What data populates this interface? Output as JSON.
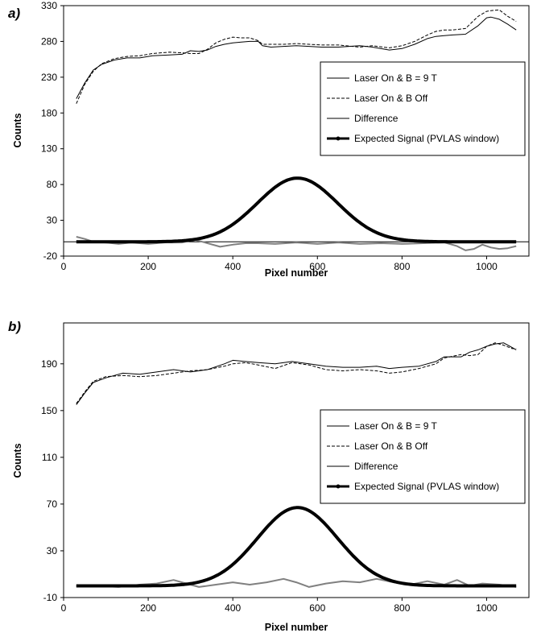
{
  "chart_data": [
    {
      "type": "line",
      "panel_label": "a)",
      "xlabel": "Pixel number",
      "ylabel": "Counts",
      "xlim": [
        0,
        1100
      ],
      "ylim": [
        -20,
        330
      ],
      "xticks": [
        "0",
        "200",
        "400",
        "600",
        "800",
        "1000"
      ],
      "yticks": [
        "-20",
        "30",
        "80",
        "130",
        "180",
        "230",
        "280",
        "330"
      ],
      "zero_line": 0,
      "legend_position": "right",
      "series": [
        {
          "name": "Laser On & B = 9 T",
          "color": "#000000",
          "style": "solid",
          "x": [
            30,
            50,
            70,
            90,
            120,
            150,
            180,
            210,
            250,
            280,
            300,
            320,
            340,
            360,
            380,
            400,
            420,
            440,
            460,
            470,
            490,
            520,
            550,
            580,
            610,
            650,
            700,
            730,
            770,
            800,
            830,
            860,
            880,
            900,
            920,
            950,
            980,
            1000,
            1010,
            1030,
            1050,
            1070
          ],
          "y": [
            200,
            222,
            240,
            248,
            254,
            257,
            257,
            260,
            261,
            262,
            267,
            266,
            268,
            273,
            276,
            278,
            279,
            280,
            280,
            274,
            272,
            273,
            274,
            273,
            272,
            272,
            274,
            272,
            268,
            270,
            276,
            284,
            287,
            288,
            289,
            290,
            302,
            313,
            314,
            311,
            304,
            296
          ]
        },
        {
          "name": "Laser On & B Off",
          "color": "#000000",
          "style": "dashed",
          "x": [
            30,
            50,
            70,
            90,
            120,
            150,
            180,
            210,
            250,
            280,
            300,
            320,
            340,
            360,
            380,
            400,
            420,
            440,
            460,
            470,
            490,
            520,
            550,
            580,
            610,
            650,
            700,
            730,
            770,
            800,
            830,
            860,
            880,
            900,
            920,
            950,
            980,
            1000,
            1010,
            1030,
            1050,
            1070
          ],
          "y": [
            193,
            220,
            238,
            249,
            256,
            259,
            260,
            263,
            265,
            264,
            263,
            263,
            269,
            278,
            283,
            286,
            285,
            285,
            281,
            276,
            276,
            276,
            277,
            276,
            275,
            275,
            272,
            274,
            271,
            274,
            280,
            289,
            294,
            296,
            296,
            298,
            315,
            322,
            323,
            324,
            315,
            308
          ]
        },
        {
          "name": "Difference",
          "color": "#808080",
          "style": "solid",
          "x": [
            30,
            50,
            70,
            100,
            130,
            160,
            200,
            240,
            280,
            310,
            340,
            370,
            400,
            430,
            460,
            500,
            550,
            600,
            650,
            700,
            750,
            800,
            850,
            900,
            930,
            950,
            970,
            990,
            1010,
            1030,
            1050,
            1070
          ],
          "y": [
            7,
            4,
            0,
            -1,
            -3,
            -1,
            -3,
            -1,
            -1,
            3,
            -2,
            -7,
            -4,
            -2,
            -2,
            -3,
            -1,
            -3,
            -1,
            -3,
            -2,
            -3,
            -2,
            -1,
            -6,
            -12,
            -10,
            -4,
            -8,
            -10,
            -9,
            -6
          ]
        },
        {
          "name": "Expected Signal (PVLAS window)",
          "color": "#000000",
          "style": "bold-gaussian",
          "gaussian": {
            "amplitude": 89,
            "center": 553,
            "sigma": 95
          },
          "x_range": [
            30,
            1070
          ]
        }
      ]
    },
    {
      "type": "line",
      "panel_label": "b)",
      "xlabel": "Pixel number",
      "ylabel": "Counts",
      "xlim": [
        0,
        1100
      ],
      "ylim": [
        -10,
        225
      ],
      "xticks": [
        "0",
        "200",
        "400",
        "600",
        "800",
        "1000"
      ],
      "yticks": [
        "-10",
        "30",
        "70",
        "110",
        "150",
        "190"
      ],
      "legend_position": "right",
      "series": [
        {
          "name": "Laser On & B = 9 T",
          "color": "#000000",
          "style": "solid",
          "x": [
            30,
            50,
            70,
            100,
            140,
            180,
            220,
            260,
            300,
            340,
            380,
            400,
            430,
            460,
            500,
            540,
            580,
            620,
            660,
            700,
            740,
            770,
            800,
            840,
            880,
            900,
            940,
            960,
            980,
            1000,
            1020,
            1040,
            1060,
            1070
          ],
          "y": [
            155,
            165,
            174,
            178,
            182,
            181,
            183,
            185,
            183,
            185,
            190,
            193,
            192,
            191,
            190,
            192,
            190,
            188,
            187,
            187,
            188,
            186,
            187,
            188,
            192,
            196,
            196,
            200,
            202,
            205,
            207,
            208,
            204,
            202
          ]
        },
        {
          "name": "Laser On & B Off",
          "color": "#000000",
          "style": "dashed",
          "x": [
            30,
            50,
            70,
            100,
            140,
            180,
            220,
            260,
            300,
            340,
            380,
            400,
            430,
            460,
            500,
            540,
            580,
            620,
            660,
            700,
            740,
            770,
            800,
            840,
            880,
            900,
            940,
            960,
            980,
            1000,
            1020,
            1040,
            1060,
            1070
          ],
          "y": [
            156,
            166,
            175,
            179,
            180,
            179,
            180,
            182,
            184,
            185,
            188,
            190,
            191,
            189,
            186,
            191,
            189,
            185,
            184,
            185,
            184,
            182,
            183,
            186,
            190,
            195,
            198,
            197,
            198,
            205,
            208,
            206,
            203,
            203
          ]
        },
        {
          "name": "Difference",
          "color": "#808080",
          "style": "solid",
          "x": [
            30,
            80,
            130,
            180,
            220,
            260,
            290,
            320,
            360,
            400,
            440,
            480,
            520,
            550,
            580,
            620,
            660,
            700,
            740,
            780,
            820,
            860,
            900,
            930,
            960,
            990,
            1030,
            1070
          ],
          "y": [
            0,
            0,
            -1,
            1,
            2,
            5,
            2,
            -1,
            1,
            3,
            1,
            3,
            6,
            3,
            -1,
            2,
            4,
            3,
            6,
            3,
            1,
            4,
            1,
            5,
            0,
            2,
            1,
            -1
          ]
        },
        {
          "name": "Expected Signal (PVLAS window)",
          "color": "#000000",
          "style": "bold-gaussian",
          "gaussian": {
            "amplitude": 67,
            "center": 553,
            "sigma": 95
          },
          "x_range": [
            30,
            1070
          ]
        }
      ]
    }
  ]
}
